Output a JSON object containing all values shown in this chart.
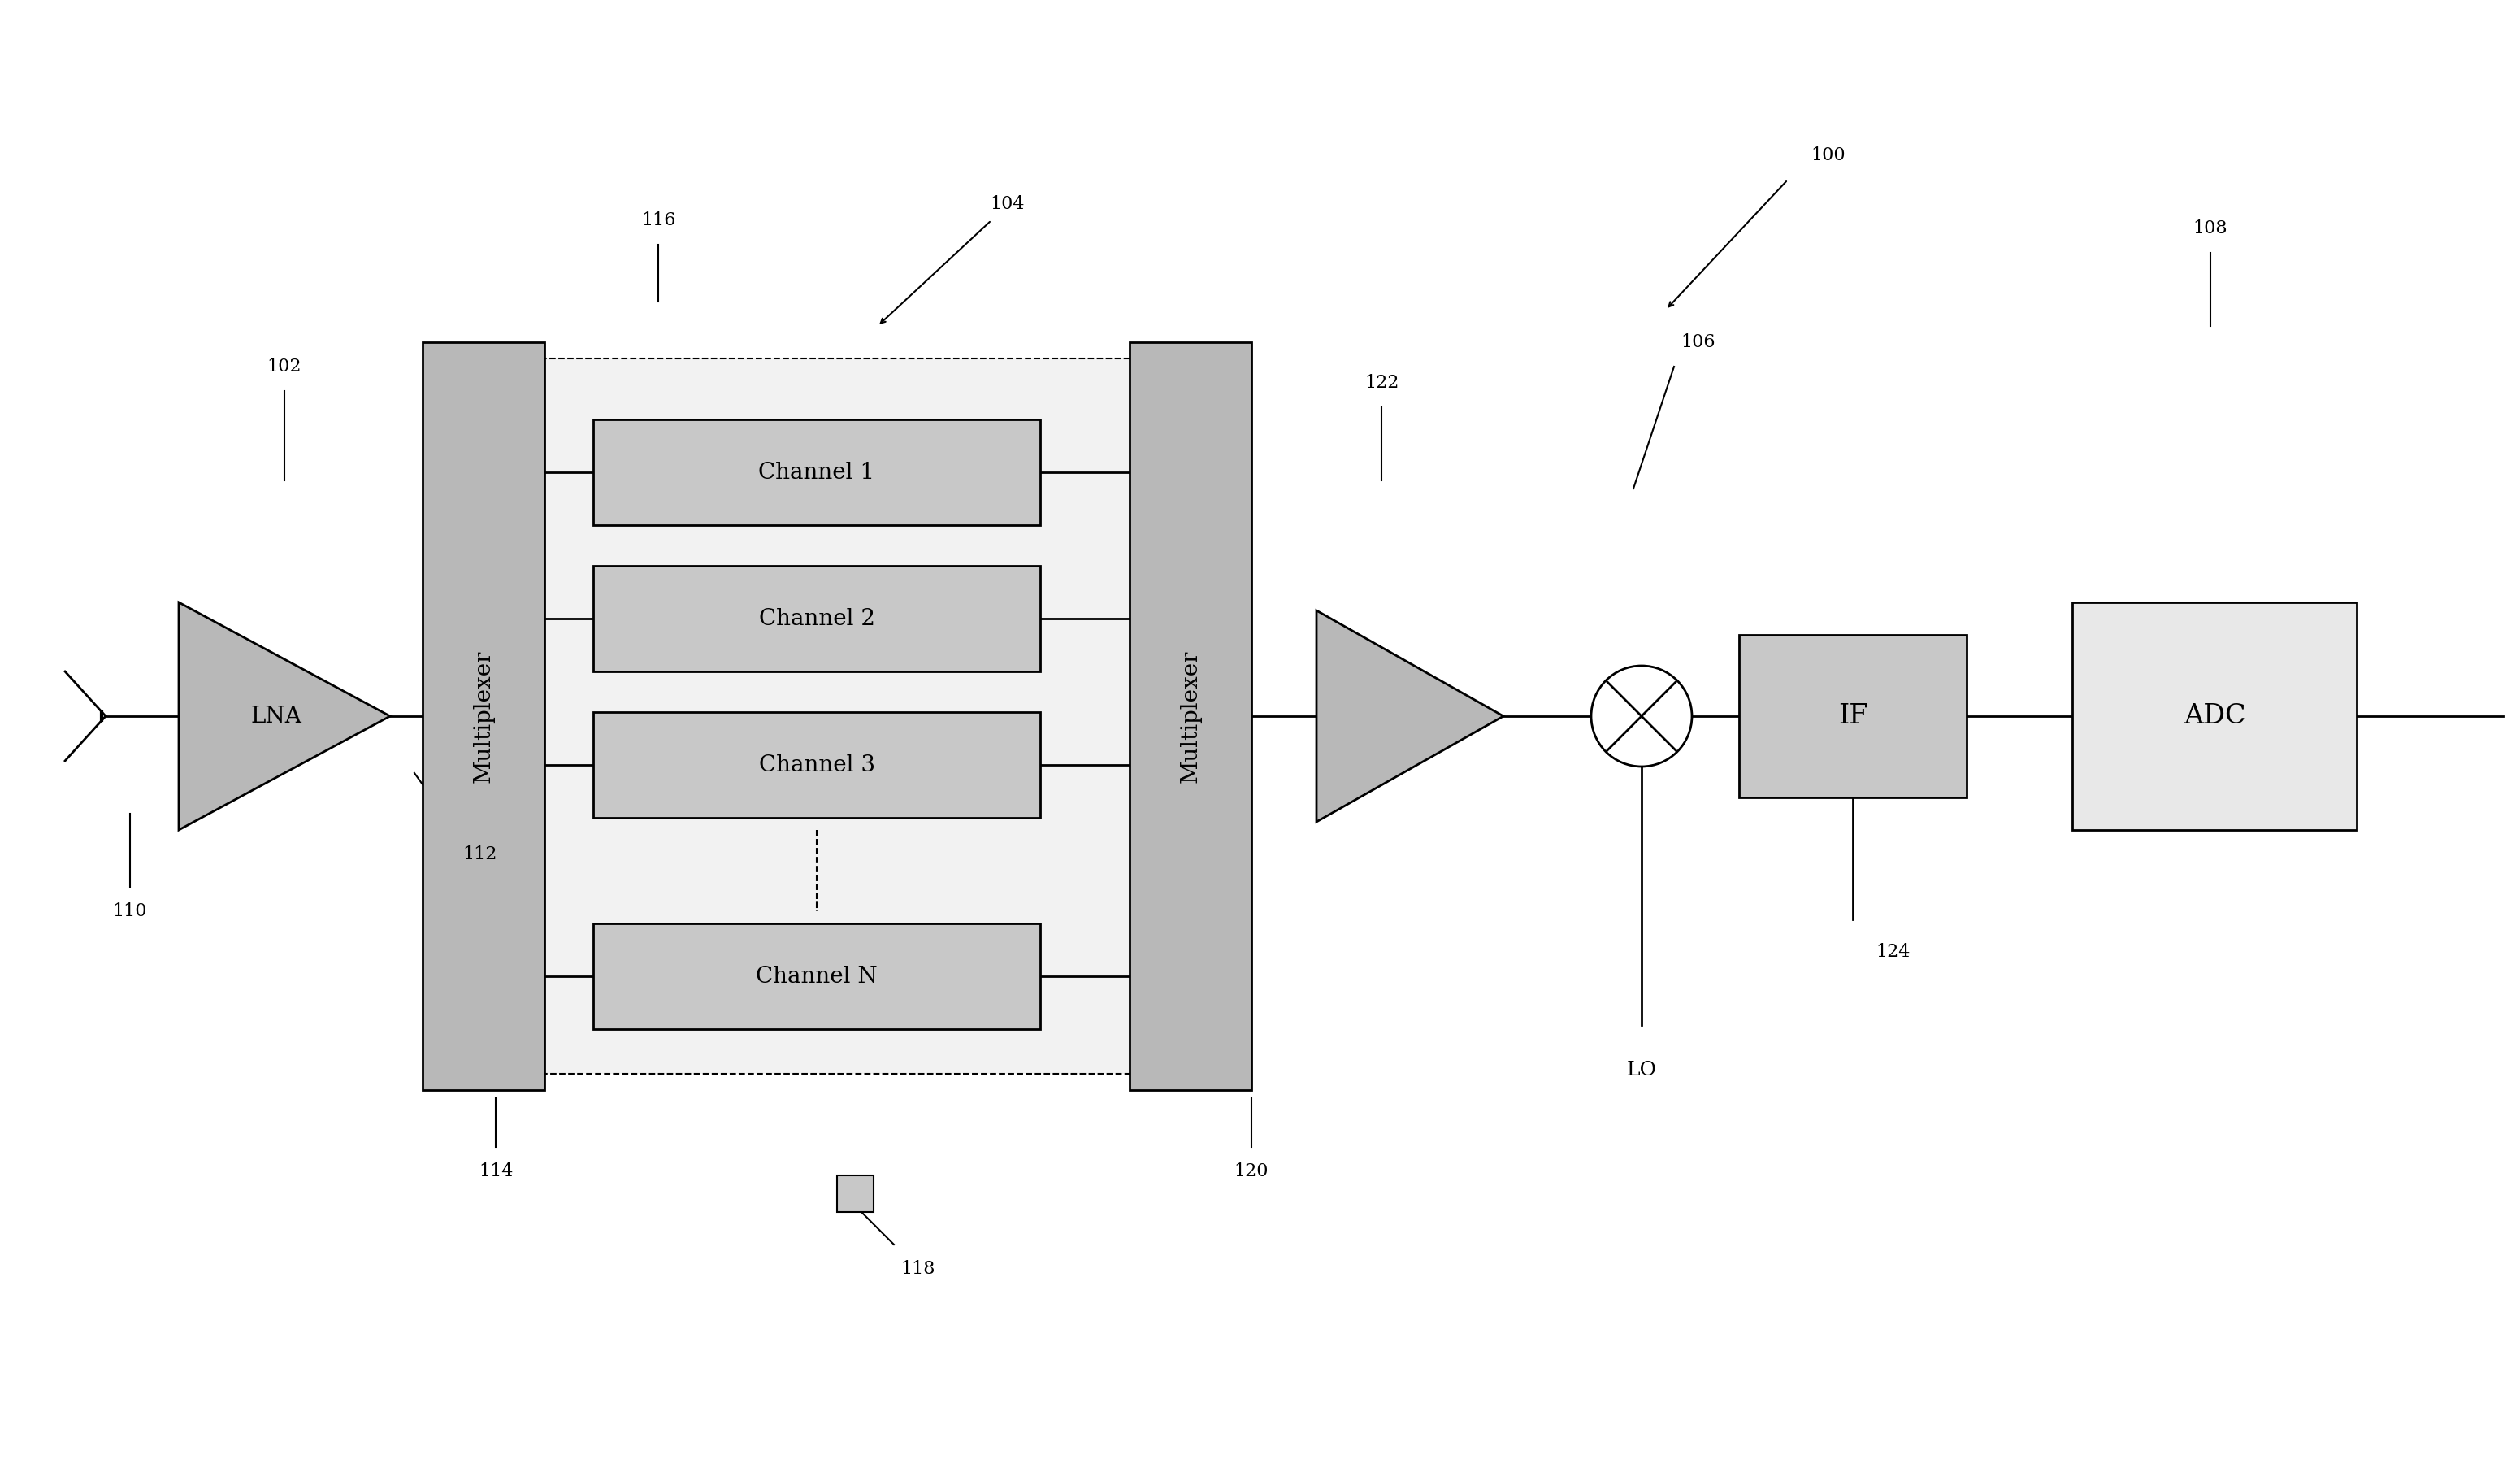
{
  "bg_color": "#ffffff",
  "line_color": "#000000",
  "box_fill": "#b8b8b8",
  "box_fill_ch": "#c8c8c8",
  "box_fill_adc": "#e8e8e8",
  "dashed_box_fill": "#f2f2f2",
  "labels": {
    "lna": "LNA",
    "mux_left": "Multiplexer",
    "mux_right": "Multiplexer",
    "ch1": "Channel 1",
    "ch2": "Channel 2",
    "ch3": "Channel 3",
    "chN": "Channel N",
    "if_label": "IF",
    "adc": "ADC",
    "lo": "LO",
    "ref100": "100",
    "ref102": "102",
    "ref104": "104",
    "ref106": "106",
    "ref108": "108",
    "ref110": "110",
    "ref112": "112",
    "ref114": "114",
    "ref116": "116",
    "ref118": "118",
    "ref120": "120",
    "ref122": "122",
    "ref124": "124"
  },
  "fs_ref": 16,
  "fs_label": 17,
  "fs_block": 20
}
